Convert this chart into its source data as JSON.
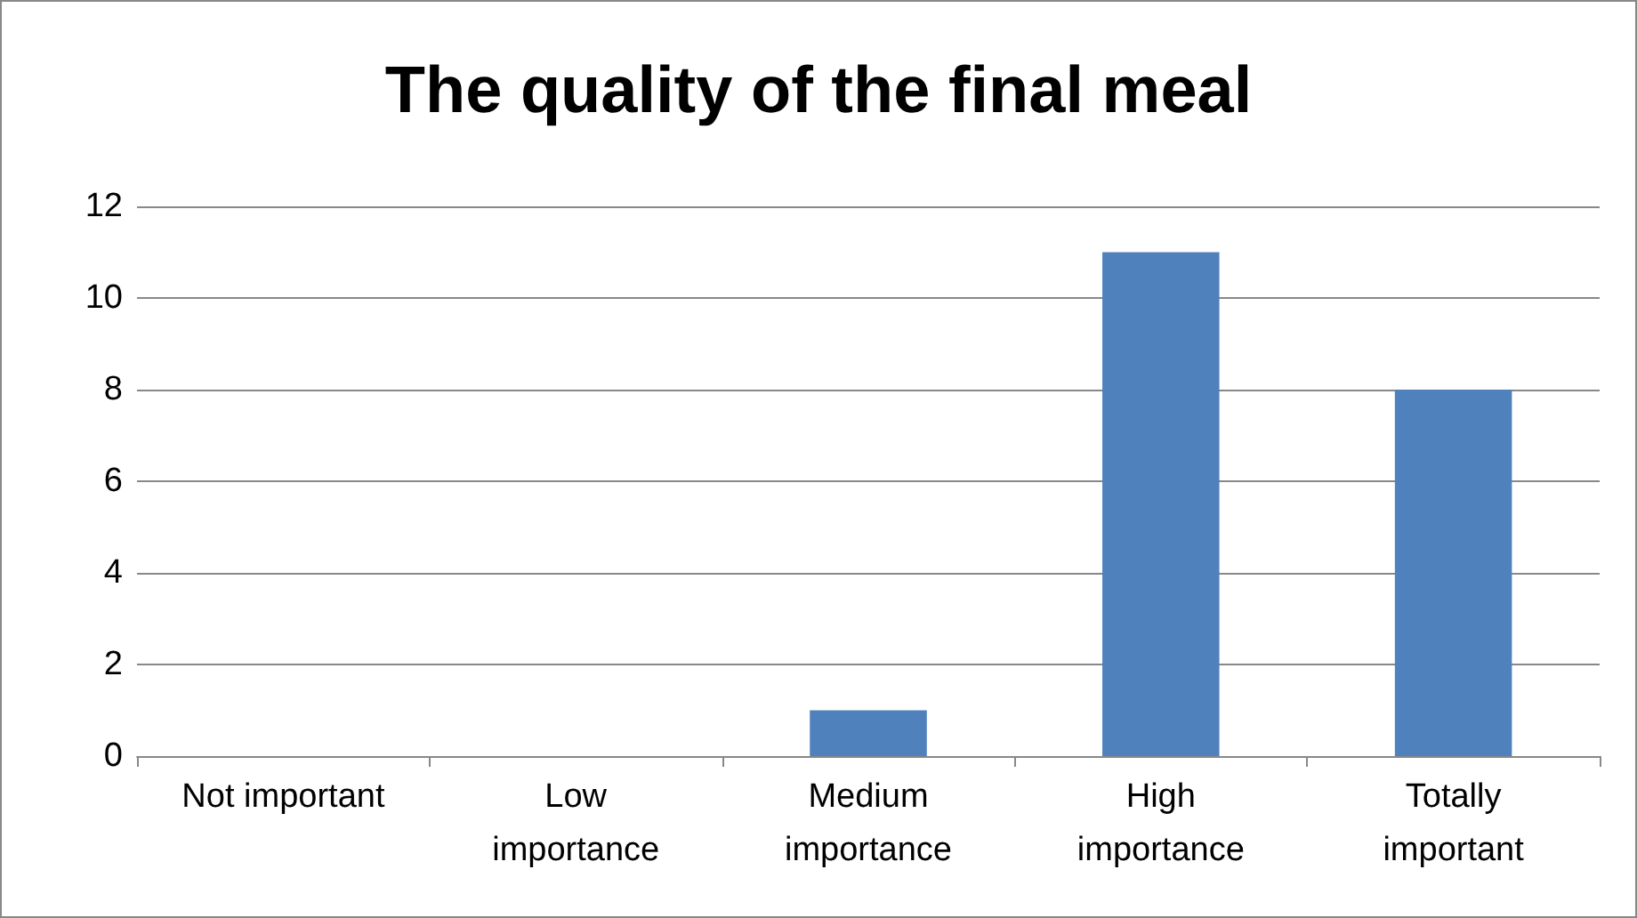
{
  "chart_data": {
    "type": "bar",
    "title": "The quality of the final meal",
    "categories": [
      "Not important",
      "Low importance",
      "Medium importance",
      "High importance",
      "Totally important"
    ],
    "values": [
      0,
      0,
      1,
      11,
      8
    ],
    "color": "#4f81bd",
    "ylim": [
      0,
      12
    ],
    "yticks": [
      0,
      2,
      4,
      6,
      8,
      10,
      12
    ],
    "grid": "y"
  }
}
